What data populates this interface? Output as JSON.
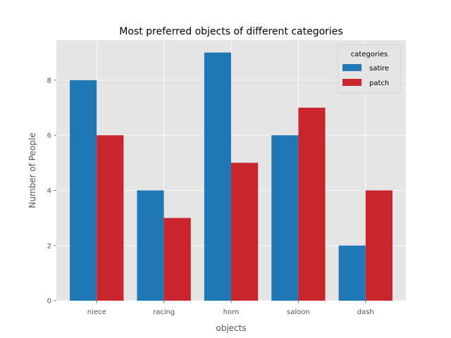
{
  "chart_data": {
    "type": "bar",
    "title": "Most preferred objects of different categories",
    "xlabel": "objects",
    "ylabel": "Number of People",
    "categories": [
      "niece",
      "racing",
      "horn",
      "saloon",
      "dash"
    ],
    "series": [
      {
        "name": "satire",
        "values": [
          8,
          4,
          9,
          6,
          2
        ],
        "color": "#1f77b4"
      },
      {
        "name": "patch",
        "values": [
          6,
          3,
          5,
          7,
          4
        ],
        "color": "#c8252c"
      }
    ],
    "ylim": [
      0,
      9.45
    ],
    "yticks": [
      "0",
      "2",
      "4",
      "6",
      "8"
    ],
    "grid": true,
    "legend": {
      "title": "categories",
      "placement": "top-right"
    },
    "colors": {
      "plot_background": "#e5e5e5",
      "grid": "#ffffff"
    }
  }
}
